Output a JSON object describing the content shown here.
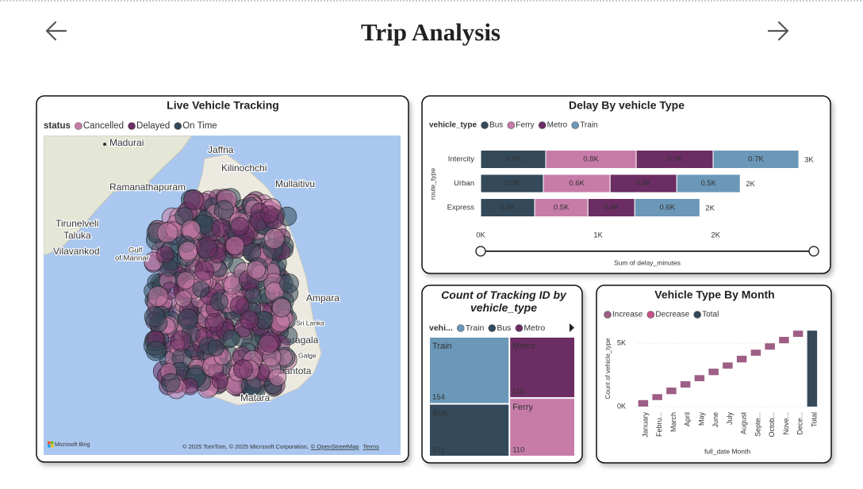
{
  "header": {
    "title": "Trip Analysis"
  },
  "map": {
    "title": "Live Vehicle Tracking",
    "legend_title": "status",
    "legend": [
      {
        "name": "Cancelled",
        "color": "#c77ba8"
      },
      {
        "name": "Delayed",
        "color": "#6b2d63"
      },
      {
        "name": "On Time",
        "color": "#34495a"
      }
    ],
    "places": [
      "Madurai",
      "Jaffna",
      "Kilinochchi",
      "Mullaitivu",
      "Ramanathapuram",
      "Tirunelveli",
      "Taluka",
      "Vilavankod",
      "Gulf",
      "of Mannar",
      "Ampara",
      "Sri Lanka",
      "Monaragala",
      "Galge",
      "Hambantota",
      "Matara"
    ],
    "logo": "Microsoft Bing",
    "attribution": "© 2025 TomTom, © 2025 Microsoft Corporation,",
    "osm": "© OpenStreetMap",
    "terms": "Terms"
  },
  "chart_data": [
    {
      "type": "bar",
      "orientation": "horizontal",
      "stacked": true,
      "title": "Delay By vehicle Type",
      "legend_title": "vehicle_type",
      "categories": [
        "Intercity",
        "Urban",
        "Express"
      ],
      "series": [
        {
          "name": "Bus",
          "color": "#34495a",
          "values": [
            554,
            534,
            460
          ],
          "value_labels": [
            "0.6K",
            "0.5K",
            "0.5K"
          ]
        },
        {
          "name": "Ferry",
          "color": "#c77ba8",
          "values": [
            770,
            568,
            453
          ],
          "value_labels": [
            "0.8K",
            "0.6K",
            "0.5K"
          ]
        },
        {
          "name": "Metro",
          "color": "#6b2d63",
          "values": [
            655,
            568,
            399
          ],
          "value_labels": [
            "0.7K",
            "0.6K",
            "0.4K"
          ]
        },
        {
          "name": "Train",
          "color": "#6b97b8",
          "values": [
            730,
            540,
            554
          ],
          "value_labels": [
            "0.7K",
            "0.5K",
            "0.6K"
          ]
        }
      ],
      "totals": [
        2709,
        2210,
        1866
      ],
      "total_labels": [
        "3K",
        "2K",
        "2K"
      ],
      "xlabel": "Sum of delay_minutes",
      "ylabel": "route_type",
      "xlim": [
        0,
        2850
      ],
      "xticks": [
        {
          "value": 0,
          "label": "0K"
        },
        {
          "value": 1000,
          "label": "1K"
        },
        {
          "value": 2000,
          "label": "2K"
        }
      ]
    },
    {
      "type": "treemap",
      "title": "Count of Tracking ID by vehicle_type",
      "legend_title": "vehi...",
      "categories": [
        "Train",
        "Metro",
        "Bus",
        "Ferry"
      ],
      "values": [
        154,
        115,
        121,
        110
      ],
      "colors": [
        "#6b97b8",
        "#6b2d63",
        "#34495a",
        "#c77ba8"
      ]
    },
    {
      "type": "waterfall",
      "title": "Vehicle Type By Month",
      "legend": [
        {
          "name": "Increase",
          "color": "#9e5f86"
        },
        {
          "name": "Decrease",
          "color": "#c9508a"
        },
        {
          "name": "Total",
          "color": "#34495a"
        }
      ],
      "categories": [
        "January",
        "Febru...",
        "March",
        "April",
        "May",
        "June",
        "July",
        "August",
        "Septe...",
        "Octob...",
        "Nove...",
        "Dece..."
      ],
      "values": [
        510,
        470,
        520,
        500,
        480,
        510,
        490,
        530,
        480,
        500,
        510,
        490
      ],
      "total_label": "Total",
      "total": 5990,
      "xlabel": "full_date Month",
      "ylabel": "Count of vehicle_type",
      "ylim": [
        0,
        6200
      ],
      "yticks": [
        {
          "value": 0,
          "label": "0K"
        },
        {
          "value": 5000,
          "label": "5K"
        }
      ],
      "grid": true
    }
  ]
}
